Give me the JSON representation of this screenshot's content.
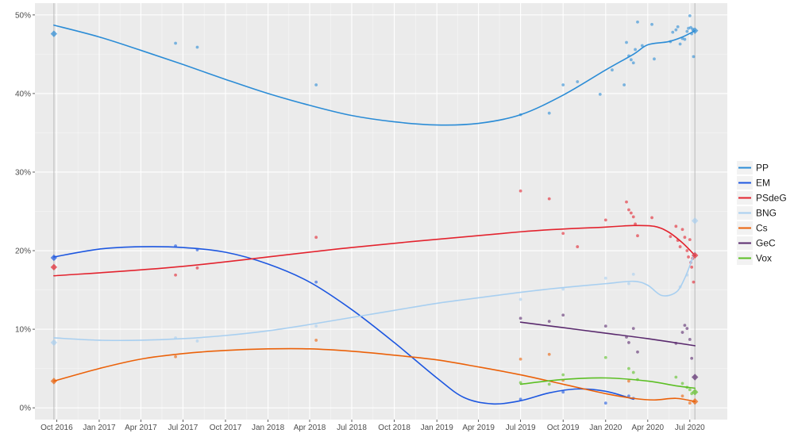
{
  "chart_data": {
    "type": "line",
    "title": "",
    "xlabel": "",
    "ylabel": "",
    "x_domain": [
      "2016-08-15",
      "2020-09-20"
    ],
    "ylim": [
      -1.5,
      51.5
    ],
    "grid": true,
    "legend_position": "right",
    "y_ticks": [
      {
        "value": 0,
        "label": "0%"
      },
      {
        "value": 10,
        "label": "10%"
      },
      {
        "value": 20,
        "label": "20%"
      },
      {
        "value": 30,
        "label": "30%"
      },
      {
        "value": 40,
        "label": "40%"
      },
      {
        "value": 50,
        "label": "50%"
      }
    ],
    "x_ticks": [
      {
        "date": "2016-10-01",
        "label": "Oct 2016"
      },
      {
        "date": "2017-01-01",
        "label": "Jan 2017"
      },
      {
        "date": "2017-04-01",
        "label": "Apr 2017"
      },
      {
        "date": "2017-07-01",
        "label": "Jul 2017"
      },
      {
        "date": "2017-10-01",
        "label": "Oct 2017"
      },
      {
        "date": "2018-01-01",
        "label": "Jan 2018"
      },
      {
        "date": "2018-04-01",
        "label": "Apr 2018"
      },
      {
        "date": "2018-07-01",
        "label": "Jul 2018"
      },
      {
        "date": "2018-10-01",
        "label": "Oct 2018"
      },
      {
        "date": "2019-01-01",
        "label": "Jan 2019"
      },
      {
        "date": "2019-04-01",
        "label": "Apr 2019"
      },
      {
        "date": "2019-07-01",
        "label": "Jul 2019"
      },
      {
        "date": "2019-10-01",
        "label": "Oct 2019"
      },
      {
        "date": "2020-01-01",
        "label": "Jan 2020"
      },
      {
        "date": "2020-04-01",
        "label": "Apr 2020"
      },
      {
        "date": "2020-07-01",
        "label": "Jul 2020"
      }
    ],
    "election_dates": [
      "2016-09-25",
      "2020-07-12"
    ],
    "series": [
      {
        "name": "PP",
        "color": "#2b8cd6",
        "results": [
          {
            "date": "2016-09-25",
            "value": 47.6
          },
          {
            "date": "2020-07-12",
            "value": 48.0
          }
        ],
        "trend": [
          [
            "2016-09-25",
            48.7
          ],
          [
            "2017-01-01",
            47.2
          ],
          [
            "2017-04-01",
            45.5
          ],
          [
            "2017-07-01",
            43.7
          ],
          [
            "2017-10-01",
            41.8
          ],
          [
            "2018-01-01",
            40.0
          ],
          [
            "2018-04-01",
            38.5
          ],
          [
            "2018-07-01",
            37.2
          ],
          [
            "2018-10-01",
            36.4
          ],
          [
            "2019-01-01",
            36.0
          ],
          [
            "2019-04-01",
            36.2
          ],
          [
            "2019-07-01",
            37.3
          ],
          [
            "2019-10-01",
            39.8
          ],
          [
            "2020-01-01",
            43.0
          ],
          [
            "2020-03-01",
            45.0
          ],
          [
            "2020-04-01",
            46.2
          ],
          [
            "2020-05-15",
            46.6
          ],
          [
            "2020-06-15",
            47.2
          ],
          [
            "2020-07-12",
            48.0
          ]
        ],
        "polls": [
          [
            "2017-06-15",
            46.4
          ],
          [
            "2017-08-01",
            45.9
          ],
          [
            "2018-04-15",
            41.1
          ],
          [
            "2019-07-01",
            37.3
          ],
          [
            "2019-09-01",
            37.5
          ],
          [
            "2019-10-01",
            41.1
          ],
          [
            "2019-11-01",
            41.5
          ],
          [
            "2019-12-20",
            39.9
          ],
          [
            "2020-01-15",
            43.0
          ],
          [
            "2020-02-10",
            41.1
          ],
          [
            "2020-02-15",
            46.5
          ],
          [
            "2020-02-20",
            44.8
          ],
          [
            "2020-02-25",
            44.3
          ],
          [
            "2020-03-01",
            43.9
          ],
          [
            "2020-03-05",
            45.6
          ],
          [
            "2020-03-10",
            49.1
          ],
          [
            "2020-03-20",
            46.1
          ],
          [
            "2020-04-10",
            48.8
          ],
          [
            "2020-04-15",
            44.4
          ],
          [
            "2020-05-20",
            46.6
          ],
          [
            "2020-05-25",
            47.8
          ],
          [
            "2020-06-01",
            48.1
          ],
          [
            "2020-06-05",
            48.5
          ],
          [
            "2020-06-10",
            46.3
          ],
          [
            "2020-06-15",
            47.0
          ],
          [
            "2020-06-20",
            46.9
          ],
          [
            "2020-06-25",
            47.9
          ],
          [
            "2020-06-28",
            48.3
          ],
          [
            "2020-07-01",
            49.9
          ],
          [
            "2020-07-03",
            48.4
          ],
          [
            "2020-07-05",
            47.6
          ],
          [
            "2020-07-07",
            48.2
          ],
          [
            "2020-07-09",
            44.7
          ]
        ]
      },
      {
        "name": "EM",
        "color": "#1d57e0",
        "results": [
          {
            "date": "2016-09-25",
            "value": 19.1
          }
        ],
        "trend": [
          [
            "2016-09-25",
            19.2
          ],
          [
            "2017-01-01",
            20.2
          ],
          [
            "2017-04-01",
            20.5
          ],
          [
            "2017-07-01",
            20.4
          ],
          [
            "2017-10-01",
            19.8
          ],
          [
            "2018-01-01",
            18.3
          ],
          [
            "2018-04-01",
            16.0
          ],
          [
            "2018-07-01",
            12.5
          ],
          [
            "2018-10-01",
            8.3
          ],
          [
            "2019-01-01",
            3.8
          ],
          [
            "2019-03-01",
            1.3
          ],
          [
            "2019-05-01",
            0.5
          ],
          [
            "2019-07-01",
            0.9
          ],
          [
            "2019-09-01",
            1.9
          ],
          [
            "2019-11-01",
            2.4
          ],
          [
            "2020-01-01",
            2.1
          ],
          [
            "2020-03-01",
            1.1
          ]
        ],
        "polls": [
          [
            "2017-06-15",
            20.6
          ],
          [
            "2017-08-01",
            20.1
          ],
          [
            "2018-04-15",
            16.0
          ],
          [
            "2019-07-01",
            1.1
          ],
          [
            "2019-10-01",
            2.0
          ],
          [
            "2020-01-01",
            0.6
          ],
          [
            "2020-02-20",
            1.5
          ],
          [
            "2020-03-01",
            1.2
          ]
        ]
      },
      {
        "name": "PSdeG",
        "color": "#e3232e",
        "results": [
          {
            "date": "2016-09-25",
            "value": 17.9
          },
          {
            "date": "2020-07-12",
            "value": 19.4
          }
        ],
        "trend": [
          [
            "2016-09-25",
            16.8
          ],
          [
            "2017-07-01",
            18.0
          ],
          [
            "2018-07-01",
            20.4
          ],
          [
            "2019-07-01",
            22.4
          ],
          [
            "2020-01-01",
            23.0
          ],
          [
            "2020-03-01",
            23.2
          ],
          [
            "2020-04-15",
            23.1
          ],
          [
            "2020-05-15",
            22.4
          ],
          [
            "2020-06-15",
            21.0
          ],
          [
            "2020-07-12",
            19.4
          ]
        ],
        "polls": [
          [
            "2017-06-15",
            16.9
          ],
          [
            "2017-08-01",
            17.8
          ],
          [
            "2018-04-15",
            21.7
          ],
          [
            "2019-07-01",
            27.6
          ],
          [
            "2019-09-01",
            26.6
          ],
          [
            "2019-10-01",
            22.2
          ],
          [
            "2019-11-01",
            20.5
          ],
          [
            "2020-01-01",
            23.9
          ],
          [
            "2020-02-15",
            26.2
          ],
          [
            "2020-02-20",
            25.2
          ],
          [
            "2020-02-25",
            24.8
          ],
          [
            "2020-03-01",
            24.3
          ],
          [
            "2020-03-05",
            23.4
          ],
          [
            "2020-03-10",
            21.9
          ],
          [
            "2020-04-10",
            24.2
          ],
          [
            "2020-05-20",
            21.8
          ],
          [
            "2020-06-01",
            23.1
          ],
          [
            "2020-06-05",
            21.3
          ],
          [
            "2020-06-10",
            20.5
          ],
          [
            "2020-06-15",
            22.7
          ],
          [
            "2020-06-20",
            21.7
          ],
          [
            "2020-06-25",
            20.0
          ],
          [
            "2020-06-28",
            19.2
          ],
          [
            "2020-07-01",
            21.4
          ],
          [
            "2020-07-03",
            18.5
          ],
          [
            "2020-07-05",
            17.9
          ],
          [
            "2020-07-07",
            19.0
          ],
          [
            "2020-07-09",
            16.0
          ]
        ]
      },
      {
        "name": "BNG",
        "color": "#a8cff0",
        "results": [
          {
            "date": "2016-09-25",
            "value": 8.3
          },
          {
            "date": "2020-07-12",
            "value": 23.8
          }
        ],
        "trend": [
          [
            "2016-09-25",
            8.9
          ],
          [
            "2017-01-01",
            8.6
          ],
          [
            "2017-04-01",
            8.6
          ],
          [
            "2017-07-01",
            8.8
          ],
          [
            "2017-10-01",
            9.2
          ],
          [
            "2018-01-01",
            9.8
          ],
          [
            "2018-04-01",
            10.6
          ],
          [
            "2018-07-01",
            11.5
          ],
          [
            "2018-10-01",
            12.4
          ],
          [
            "2019-01-01",
            13.3
          ],
          [
            "2019-04-01",
            14.0
          ],
          [
            "2019-07-01",
            14.7
          ],
          [
            "2019-10-01",
            15.3
          ],
          [
            "2020-01-01",
            15.8
          ],
          [
            "2020-03-01",
            16.1
          ],
          [
            "2020-04-01",
            15.6
          ],
          [
            "2020-05-01",
            14.3
          ],
          [
            "2020-06-01",
            14.7
          ],
          [
            "2020-06-20",
            16.5
          ],
          [
            "2020-07-12",
            19.8
          ]
        ],
        "polls": [
          [
            "2017-06-15",
            8.9
          ],
          [
            "2017-08-01",
            8.5
          ],
          [
            "2018-04-15",
            10.4
          ],
          [
            "2019-07-01",
            13.8
          ],
          [
            "2019-10-01",
            15.1
          ],
          [
            "2020-01-01",
            16.5
          ],
          [
            "2020-02-20",
            15.8
          ],
          [
            "2020-03-01",
            17.0
          ],
          [
            "2020-06-10",
            15.4
          ],
          [
            "2020-06-25",
            16.9
          ],
          [
            "2020-07-03",
            18.6
          ]
        ]
      },
      {
        "name": "Cs",
        "color": "#eb6109",
        "results": [
          {
            "date": "2016-09-25",
            "value": 3.4
          },
          {
            "date": "2020-07-12",
            "value": 0.8
          }
        ],
        "trend": [
          [
            "2016-09-25",
            3.4
          ],
          [
            "2017-01-01",
            5.0
          ],
          [
            "2017-04-01",
            6.2
          ],
          [
            "2017-07-01",
            6.9
          ],
          [
            "2017-10-01",
            7.3
          ],
          [
            "2018-01-01",
            7.5
          ],
          [
            "2018-04-01",
            7.5
          ],
          [
            "2018-07-01",
            7.2
          ],
          [
            "2018-10-01",
            6.7
          ],
          [
            "2019-01-01",
            6.1
          ],
          [
            "2019-04-01",
            5.2
          ],
          [
            "2019-07-01",
            4.2
          ],
          [
            "2019-10-01",
            3.0
          ],
          [
            "2020-01-01",
            1.8
          ],
          [
            "2020-03-01",
            1.2
          ],
          [
            "2020-04-15",
            1.0
          ],
          [
            "2020-06-01",
            1.2
          ],
          [
            "2020-07-12",
            0.8
          ]
        ],
        "polls": [
          [
            "2017-06-15",
            6.5
          ],
          [
            "2018-04-15",
            8.6
          ],
          [
            "2019-07-01",
            6.2
          ],
          [
            "2019-09-01",
            6.8
          ],
          [
            "2019-10-01",
            3.5
          ],
          [
            "2020-02-20",
            3.4
          ],
          [
            "2020-06-15",
            1.5
          ],
          [
            "2020-07-01",
            0.6
          ]
        ]
      },
      {
        "name": "GeC",
        "color": "#5a2a6e",
        "results": [
          {
            "date": "2020-07-12",
            "value": 3.9
          }
        ],
        "trend": [
          [
            "2019-07-01",
            10.9
          ],
          [
            "2019-10-01",
            10.2
          ],
          [
            "2020-01-01",
            9.5
          ],
          [
            "2020-04-01",
            8.8
          ],
          [
            "2020-07-12",
            7.9
          ]
        ],
        "polls": [
          [
            "2019-07-01",
            11.4
          ],
          [
            "2019-09-01",
            11.0
          ],
          [
            "2019-10-01",
            11.8
          ],
          [
            "2020-01-01",
            10.4
          ],
          [
            "2020-02-15",
            9.0
          ],
          [
            "2020-02-20",
            8.3
          ],
          [
            "2020-03-01",
            10.1
          ],
          [
            "2020-03-10",
            7.1
          ],
          [
            "2020-06-01",
            8.2
          ],
          [
            "2020-06-15",
            9.6
          ],
          [
            "2020-06-20",
            10.5
          ],
          [
            "2020-06-25",
            10.1
          ],
          [
            "2020-07-01",
            8.7
          ],
          [
            "2020-07-05",
            6.3
          ]
        ]
      },
      {
        "name": "Vox",
        "color": "#5cbf24",
        "results": [
          {
            "date": "2020-07-12",
            "value": 2.0
          }
        ],
        "trend": [
          [
            "2019-07-01",
            3.0
          ],
          [
            "2019-10-01",
            3.6
          ],
          [
            "2020-01-01",
            3.8
          ],
          [
            "2020-04-01",
            3.4
          ],
          [
            "2020-06-01",
            2.8
          ],
          [
            "2020-07-12",
            2.5
          ]
        ],
        "polls": [
          [
            "2019-07-01",
            3.2
          ],
          [
            "2019-09-01",
            3.0
          ],
          [
            "2019-10-01",
            4.2
          ],
          [
            "2020-01-01",
            6.4
          ],
          [
            "2020-02-20",
            5.0
          ],
          [
            "2020-03-01",
            4.5
          ],
          [
            "2020-03-10",
            3.6
          ],
          [
            "2020-06-01",
            3.9
          ],
          [
            "2020-06-15",
            3.1
          ],
          [
            "2020-06-25",
            2.6
          ],
          [
            "2020-07-01",
            2.3
          ],
          [
            "2020-07-05",
            1.8
          ]
        ]
      }
    ]
  }
}
